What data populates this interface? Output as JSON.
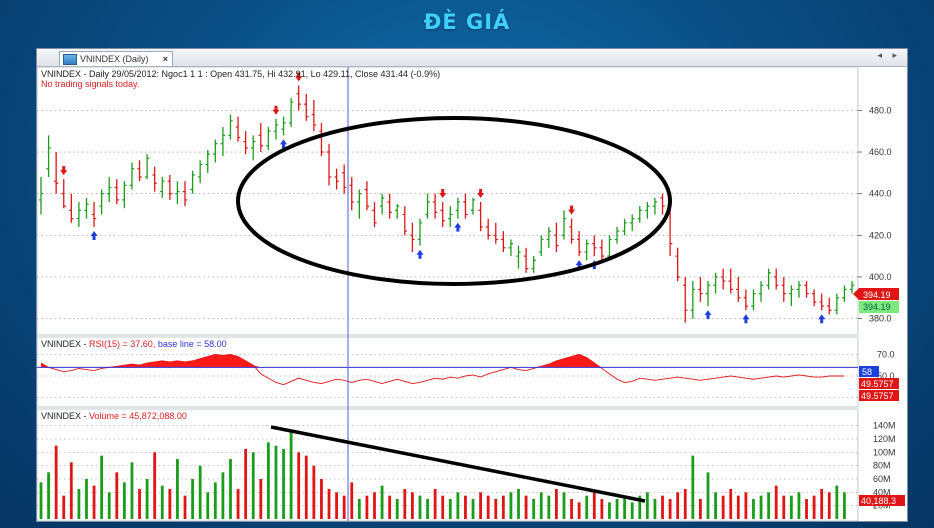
{
  "slide": {
    "title": "ĐÈ GIÁ"
  },
  "window": {
    "tab_label": "VNINDEX (Daily)",
    "tab_close": "×",
    "nav_arrows": "◂ ▸"
  },
  "price_pane": {
    "header": "VNINDEX - Daily 29/05/2012: Ngoc1 1 1 : Open 431.75, Hi 432.91, Lo 429.11, Close 431.44 (-0.9%)",
    "signal_note": "No trading signals today.",
    "last_price_red": "394.19",
    "last_price_green": "394.19"
  },
  "rsi_pane": {
    "prefix": "VNINDEX - ",
    "label": "RSI(15) = 37.60,",
    "base_text": " base line = 58.00",
    "base_label_value": "58",
    "badge_1": "49.5757",
    "badge_2": "49.5757"
  },
  "volume_pane": {
    "prefix": "VNINDEX - ",
    "label": "Volume = 45,872,088.00",
    "last_value": "40,188.3"
  },
  "colors": {
    "up": "#1a9e1a",
    "down": "#e01515",
    "rsi_fill": "#ff1a1a",
    "baseline": "#3030d0",
    "buy_arrow": "#1d3fe0",
    "sell_arrow": "#e01515",
    "annotation": "#000000"
  },
  "chart_data": {
    "type": "bar",
    "candles": [
      {
        "o": 437,
        "h": 448,
        "l": 430,
        "c": 440
      },
      {
        "o": 452,
        "h": 468,
        "l": 448,
        "c": 462
      },
      {
        "o": 446,
        "h": 460,
        "l": 440,
        "c": 445
      },
      {
        "o": 440,
        "h": 447,
        "l": 433,
        "c": 434
      },
      {
        "o": 432,
        "h": 440,
        "l": 426,
        "c": 428
      },
      {
        "o": 428,
        "h": 436,
        "l": 424,
        "c": 432
      },
      {
        "o": 432,
        "h": 438,
        "l": 428,
        "c": 435
      },
      {
        "o": 430,
        "h": 436,
        "l": 424,
        "c": 428
      },
      {
        "o": 434,
        "h": 442,
        "l": 430,
        "c": 440
      },
      {
        "o": 440,
        "h": 448,
        "l": 436,
        "c": 443
      },
      {
        "o": 443,
        "h": 447,
        "l": 435,
        "c": 437
      },
      {
        "o": 437,
        "h": 446,
        "l": 433,
        "c": 444
      },
      {
        "o": 444,
        "h": 455,
        "l": 442,
        "c": 452
      },
      {
        "o": 452,
        "h": 456,
        "l": 446,
        "c": 448
      },
      {
        "o": 448,
        "h": 459,
        "l": 447,
        "c": 457
      },
      {
        "o": 449,
        "h": 453,
        "l": 441,
        "c": 445
      },
      {
        "o": 441,
        "h": 448,
        "l": 438,
        "c": 446
      },
      {
        "o": 446,
        "h": 449,
        "l": 437,
        "c": 440
      },
      {
        "o": 440,
        "h": 446,
        "l": 435,
        "c": 441
      },
      {
        "o": 441,
        "h": 446,
        "l": 434,
        "c": 437
      },
      {
        "o": 442,
        "h": 451,
        "l": 440,
        "c": 449
      },
      {
        "o": 448,
        "h": 456,
        "l": 445,
        "c": 454
      },
      {
        "o": 454,
        "h": 461,
        "l": 450,
        "c": 459
      },
      {
        "o": 459,
        "h": 466,
        "l": 455,
        "c": 464
      },
      {
        "o": 464,
        "h": 472,
        "l": 458,
        "c": 468
      },
      {
        "o": 468,
        "h": 478,
        "l": 466,
        "c": 475
      },
      {
        "o": 472,
        "h": 477,
        "l": 465,
        "c": 467
      },
      {
        "o": 465,
        "h": 470,
        "l": 459,
        "c": 462
      },
      {
        "o": 462,
        "h": 468,
        "l": 456,
        "c": 465
      },
      {
        "o": 468,
        "h": 474,
        "l": 460,
        "c": 463
      },
      {
        "o": 463,
        "h": 472,
        "l": 461,
        "c": 470
      },
      {
        "o": 470,
        "h": 476,
        "l": 466,
        "c": 473
      },
      {
        "o": 471,
        "h": 477,
        "l": 468,
        "c": 474
      },
      {
        "o": 474,
        "h": 486,
        "l": 472,
        "c": 484
      },
      {
        "o": 488,
        "h": 492,
        "l": 480,
        "c": 483
      },
      {
        "o": 483,
        "h": 488,
        "l": 475,
        "c": 477
      },
      {
        "o": 478,
        "h": 485,
        "l": 470,
        "c": 473
      },
      {
        "o": 470,
        "h": 474,
        "l": 458,
        "c": 460
      },
      {
        "o": 460,
        "h": 464,
        "l": 444,
        "c": 448
      },
      {
        "o": 448,
        "h": 452,
        "l": 442,
        "c": 446
      },
      {
        "o": 450,
        "h": 454,
        "l": 440,
        "c": 443
      },
      {
        "o": 444,
        "h": 448,
        "l": 432,
        "c": 436
      },
      {
        "o": 436,
        "h": 442,
        "l": 428,
        "c": 440
      },
      {
        "o": 442,
        "h": 446,
        "l": 432,
        "c": 434
      },
      {
        "o": 432,
        "h": 436,
        "l": 424,
        "c": 426
      },
      {
        "o": 434,
        "h": 440,
        "l": 430,
        "c": 438
      },
      {
        "o": 436,
        "h": 440,
        "l": 428,
        "c": 431
      },
      {
        "o": 432,
        "h": 435,
        "l": 428,
        "c": 434
      },
      {
        "o": 430,
        "h": 434,
        "l": 420,
        "c": 422
      },
      {
        "o": 420,
        "h": 426,
        "l": 412,
        "c": 418
      },
      {
        "o": 418,
        "h": 428,
        "l": 415,
        "c": 426
      },
      {
        "o": 430,
        "h": 440,
        "l": 428,
        "c": 436
      },
      {
        "o": 436,
        "h": 440,
        "l": 428,
        "c": 431
      },
      {
        "o": 432,
        "h": 436,
        "l": 424,
        "c": 427
      },
      {
        "o": 428,
        "h": 434,
        "l": 424,
        "c": 430
      },
      {
        "o": 432,
        "h": 438,
        "l": 428,
        "c": 436
      },
      {
        "o": 436,
        "h": 440,
        "l": 428,
        "c": 430
      },
      {
        "o": 432,
        "h": 438,
        "l": 430,
        "c": 437
      },
      {
        "o": 432,
        "h": 436,
        "l": 422,
        "c": 424
      },
      {
        "o": 424,
        "h": 428,
        "l": 418,
        "c": 420
      },
      {
        "o": 420,
        "h": 426,
        "l": 416,
        "c": 418
      },
      {
        "o": 418,
        "h": 422,
        "l": 412,
        "c": 414
      },
      {
        "o": 414,
        "h": 418,
        "l": 410,
        "c": 416
      },
      {
        "o": 410,
        "h": 415,
        "l": 404,
        "c": 412
      },
      {
        "o": 410,
        "h": 414,
        "l": 402,
        "c": 404
      },
      {
        "o": 404,
        "h": 410,
        "l": 402,
        "c": 408
      },
      {
        "o": 412,
        "h": 420,
        "l": 410,
        "c": 418
      },
      {
        "o": 418,
        "h": 424,
        "l": 414,
        "c": 422
      },
      {
        "o": 420,
        "h": 426,
        "l": 412,
        "c": 415
      },
      {
        "o": 420,
        "h": 432,
        "l": 418,
        "c": 428
      },
      {
        "o": 424,
        "h": 428,
        "l": 416,
        "c": 418
      },
      {
        "o": 418,
        "h": 422,
        "l": 410,
        "c": 412
      },
      {
        "o": 412,
        "h": 418,
        "l": 408,
        "c": 416
      },
      {
        "o": 416,
        "h": 420,
        "l": 410,
        "c": 414
      },
      {
        "o": 414,
        "h": 418,
        "l": 408,
        "c": 410
      },
      {
        "o": 410,
        "h": 420,
        "l": 408,
        "c": 418
      },
      {
        "o": 418,
        "h": 424,
        "l": 416,
        "c": 422
      },
      {
        "o": 422,
        "h": 428,
        "l": 420,
        "c": 426
      },
      {
        "o": 426,
        "h": 430,
        "l": 422,
        "c": 428
      },
      {
        "o": 428,
        "h": 434,
        "l": 426,
        "c": 432
      },
      {
        "o": 432,
        "h": 436,
        "l": 428,
        "c": 434
      },
      {
        "o": 434,
        "h": 438,
        "l": 430,
        "c": 436
      },
      {
        "o": 438,
        "h": 440,
        "l": 430,
        "c": 434
      },
      {
        "o": 432,
        "h": 434,
        "l": 410,
        "c": 416
      },
      {
        "o": 410,
        "h": 414,
        "l": 398,
        "c": 400
      },
      {
        "o": 396,
        "h": 400,
        "l": 378,
        "c": 384
      },
      {
        "o": 384,
        "h": 398,
        "l": 380,
        "c": 394
      },
      {
        "o": 394,
        "h": 400,
        "l": 388,
        "c": 392
      },
      {
        "o": 392,
        "h": 398,
        "l": 386,
        "c": 396
      },
      {
        "o": 396,
        "h": 402,
        "l": 392,
        "c": 400
      },
      {
        "o": 400,
        "h": 404,
        "l": 394,
        "c": 398
      },
      {
        "o": 398,
        "h": 404,
        "l": 392,
        "c": 394
      },
      {
        "o": 394,
        "h": 400,
        "l": 388,
        "c": 390
      },
      {
        "o": 390,
        "h": 394,
        "l": 384,
        "c": 386
      },
      {
        "o": 386,
        "h": 394,
        "l": 384,
        "c": 392
      },
      {
        "o": 392,
        "h": 398,
        "l": 388,
        "c": 396
      },
      {
        "o": 396,
        "h": 404,
        "l": 394,
        "c": 402
      },
      {
        "o": 400,
        "h": 404,
        "l": 394,
        "c": 396
      },
      {
        "o": 396,
        "h": 400,
        "l": 388,
        "c": 392
      },
      {
        "o": 392,
        "h": 396,
        "l": 386,
        "c": 394
      },
      {
        "o": 394,
        "h": 398,
        "l": 390,
        "c": 396
      },
      {
        "o": 396,
        "h": 398,
        "l": 390,
        "c": 392
      },
      {
        "o": 392,
        "h": 394,
        "l": 386,
        "c": 388
      },
      {
        "o": 388,
        "h": 392,
        "l": 384,
        "c": 386
      },
      {
        "o": 386,
        "h": 390,
        "l": 382,
        "c": 384
      },
      {
        "o": 384,
        "h": 392,
        "l": 382,
        "c": 390
      },
      {
        "o": 390,
        "h": 396,
        "l": 388,
        "c": 394
      },
      {
        "o": 394,
        "h": 398,
        "l": 392,
        "c": 396
      }
    ],
    "price_ticks": [
      380,
      400,
      420,
      440,
      460,
      480
    ],
    "price_ylim": [
      375,
      497
    ],
    "buy_signals": [
      7,
      32,
      50,
      55,
      71,
      73,
      88,
      93,
      103
    ],
    "sell_signals": [
      3,
      31,
      34,
      53,
      58,
      70
    ],
    "rsi": [
      62,
      58,
      56,
      54,
      55,
      57,
      56,
      55,
      57,
      58,
      59,
      60,
      61,
      60,
      62,
      63,
      64,
      63,
      64,
      63,
      64,
      66,
      68,
      70,
      69,
      70,
      68,
      64,
      60,
      52,
      48,
      44,
      42,
      45,
      48,
      46,
      44,
      43,
      45,
      47,
      46,
      44,
      46,
      47,
      45,
      43,
      45,
      47,
      45,
      43,
      44,
      46,
      48,
      47,
      49,
      48,
      50,
      51,
      49,
      52,
      54,
      56,
      58,
      56,
      55,
      57,
      59,
      61,
      64,
      66,
      68,
      70,
      67,
      62,
      57,
      52,
      47,
      44,
      45,
      48,
      47,
      46,
      47,
      48,
      49,
      48,
      47,
      46,
      47,
      48,
      49,
      50,
      49,
      48,
      47,
      48,
      49,
      50,
      49,
      50,
      51,
      50,
      49,
      49,
      50,
      50,
      50
    ],
    "rsi_ticks": [
      30,
      50,
      70
    ],
    "rsi_ylim": [
      25,
      75
    ],
    "rsi_base": 58,
    "volume": [
      55,
      70,
      110,
      35,
      85,
      45,
      60,
      50,
      95,
      40,
      70,
      55,
      85,
      45,
      60,
      100,
      50,
      45,
      90,
      35,
      60,
      80,
      40,
      55,
      70,
      90,
      45,
      105,
      100,
      60,
      115,
      110,
      105,
      130,
      100,
      95,
      80,
      60,
      45,
      40,
      35,
      55,
      30,
      35,
      40,
      50,
      35,
      30,
      45,
      40,
      35,
      30,
      45,
      35,
      30,
      40,
      35,
      30,
      40,
      35,
      30,
      35,
      40,
      45,
      35,
      30,
      40,
      35,
      45,
      40,
      30,
      25,
      35,
      40,
      30,
      25,
      30,
      35,
      25,
      35,
      40,
      30,
      35,
      30,
      40,
      45,
      95,
      30,
      70,
      40,
      35,
      45,
      35,
      40,
      30,
      35,
      40,
      50,
      35,
      35,
      40,
      30,
      35,
      45,
      40,
      50,
      40
    ],
    "volume_ticks": [
      20,
      40,
      60,
      80,
      100,
      120,
      140
    ],
    "volume_unit": "M",
    "volume_ylim": [
      0,
      150
    ]
  }
}
